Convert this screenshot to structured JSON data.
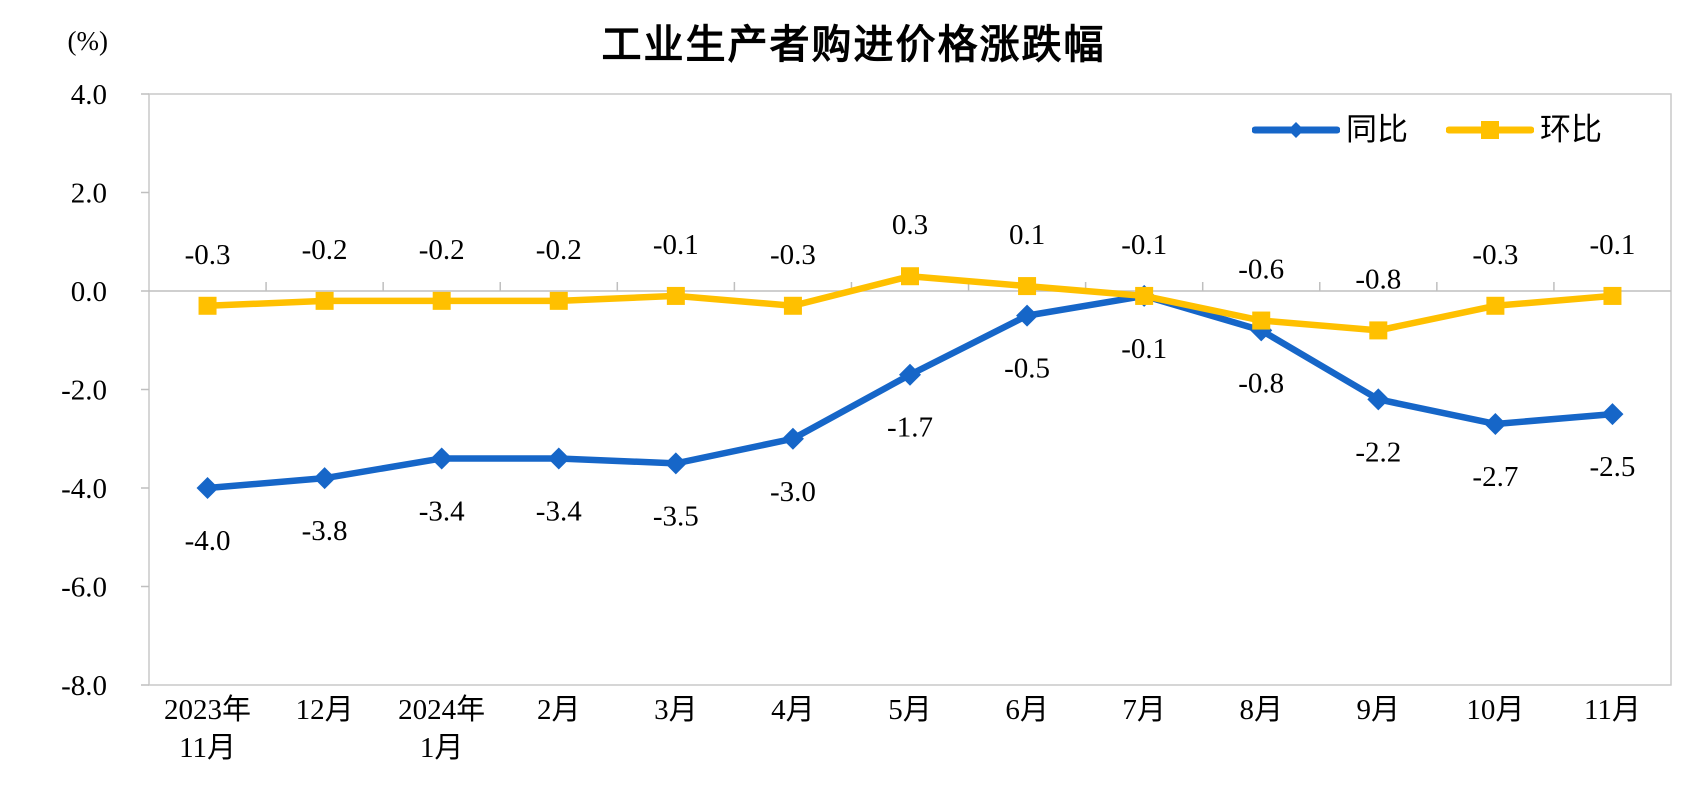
{
  "title": "工业生产者购进价格涨跌幅",
  "y_axis_unit": "(%)",
  "legend": {
    "position": "top-right-inside",
    "items": [
      {
        "label": "同比",
        "marker": "diamond"
      },
      {
        "label": "环比",
        "marker": "square"
      }
    ]
  },
  "chart_data": {
    "type": "line",
    "title": "工业生产者购进价格涨跌幅",
    "ylabel": "(%)",
    "xlabel": "",
    "ylim": [
      -8.0,
      4.0
    ],
    "ytick_labels": [
      "4.0",
      "2.0",
      "0.0",
      "-2.0",
      "-4.0",
      "-6.0",
      "-8.0"
    ],
    "categories": [
      "2023年\n11月",
      "12月",
      "2024年\n1月",
      "2月",
      "3月",
      "4月",
      "5月",
      "6月",
      "7月",
      "8月",
      "9月",
      "10月",
      "11月"
    ],
    "series": [
      {
        "name": "同比",
        "color": "#1666C8",
        "marker": "diamond",
        "label_position": "below",
        "values": [
          -4.0,
          -3.8,
          -3.4,
          -3.4,
          -3.5,
          -3.0,
          -1.7,
          -0.5,
          -0.1,
          -0.8,
          -2.2,
          -2.7,
          -2.5
        ],
        "labels": [
          "-4.0",
          "-3.8",
          "-3.4",
          "-3.4",
          "-3.5",
          "-3.0",
          "-1.7",
          "-0.5",
          "-0.1",
          "-0.8",
          "-2.2",
          "-2.7",
          "-2.5"
        ]
      },
      {
        "name": "环比",
        "color": "#FFC000",
        "marker": "square",
        "label_position": "above",
        "values": [
          -0.3,
          -0.2,
          -0.2,
          -0.2,
          -0.1,
          -0.3,
          0.3,
          0.1,
          -0.1,
          -0.6,
          -0.8,
          -0.3,
          -0.1
        ],
        "labels": [
          "-0.3",
          "-0.2",
          "-0.2",
          "-0.2",
          "-0.1",
          "-0.3",
          "0.3",
          "0.1",
          "-0.1",
          "-0.6",
          "-0.8",
          "-0.3",
          "-0.1"
        ]
      }
    ],
    "grid": false,
    "zero_line": true,
    "legend_position": "top-right-inside"
  },
  "colors": {
    "series_yoy": "#1666C8",
    "series_mom": "#FFC000",
    "axis_border": "#C9C9C9",
    "zero_line": "#BFBFBF",
    "text": "#000000",
    "background": "#FFFFFF"
  }
}
